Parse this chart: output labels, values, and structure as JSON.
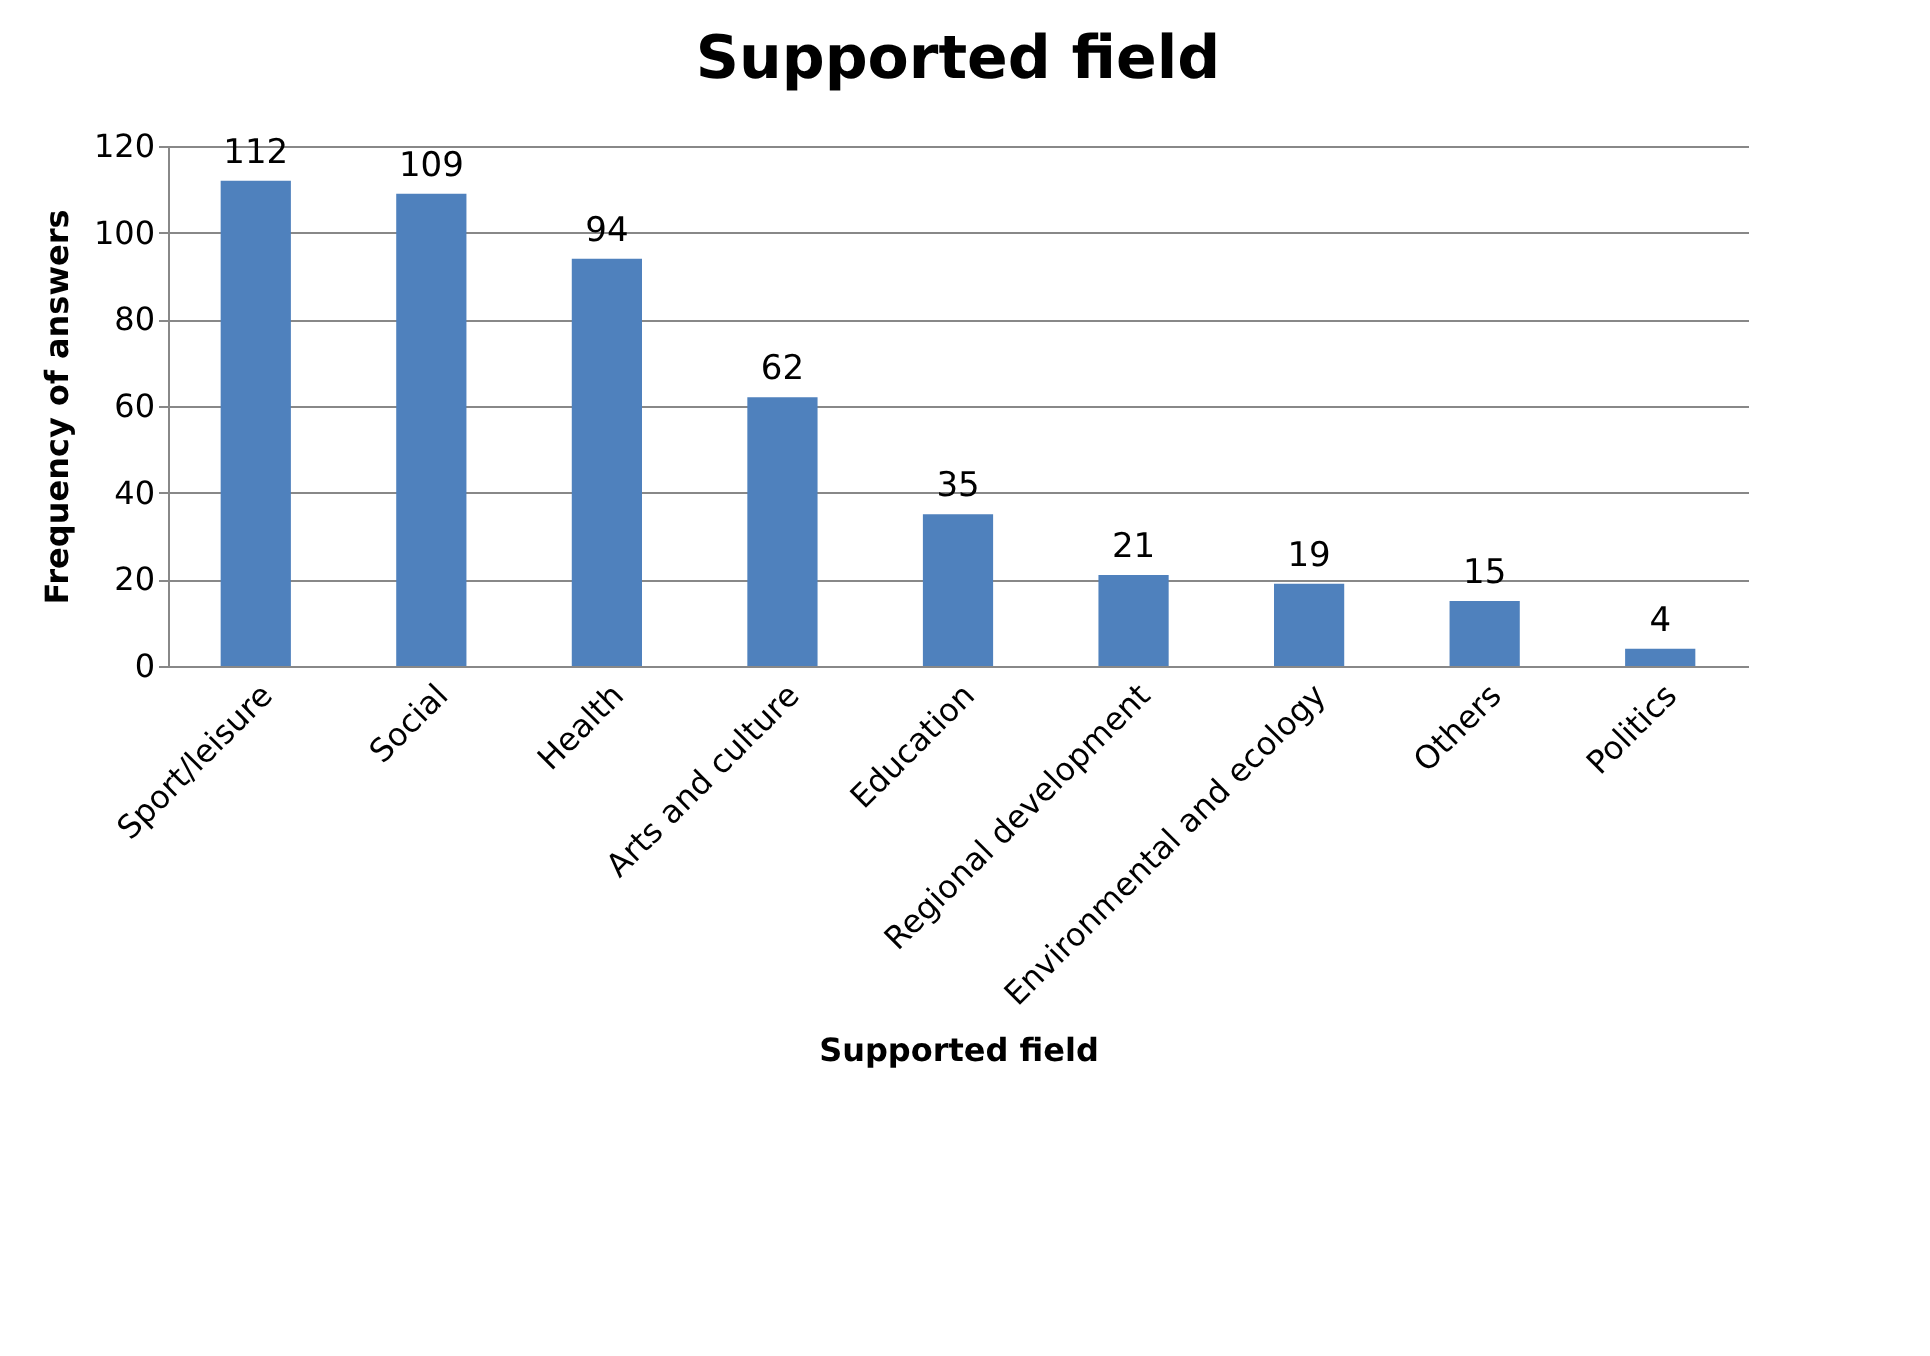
{
  "chart_data": {
    "type": "bar",
    "title": "Supported field",
    "xlabel": "Supported field",
    "ylabel": "Frequency of answers",
    "categories": [
      "Sport/leisure",
      "Social",
      "Health",
      "Arts and culture",
      "Education",
      "Regional development",
      "Environmental and ecology",
      "Others",
      "Politics"
    ],
    "values": [
      112,
      109,
      94,
      62,
      35,
      21,
      19,
      15,
      4
    ],
    "color": "#4f81bd",
    "ylim": [
      0,
      120
    ],
    "yticks": [
      0,
      20,
      40,
      60,
      80,
      100,
      120
    ],
    "grid": "y",
    "data_labels": true
  }
}
